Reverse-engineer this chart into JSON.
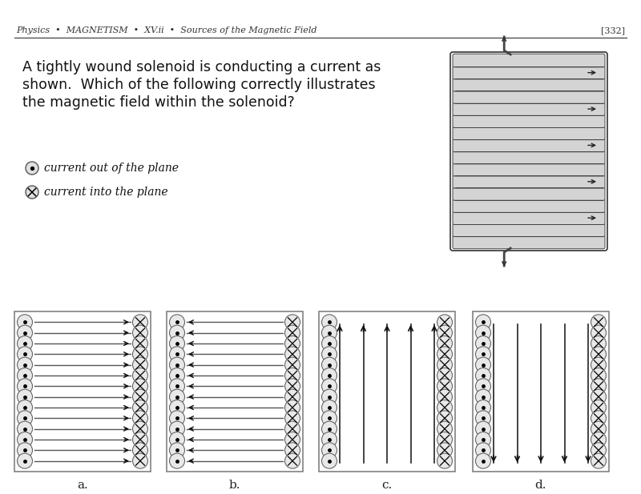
{
  "bg_color": "#ffffff",
  "header_text": "Physics  •  MAGNETISM  •  XV.ii  •  Sources of the Magnetic Field",
  "page_num": "[332]",
  "question_line1": "A tightly wound solenoid is conducting a current as",
  "question_line2": "shown.  Which of the following correctly illustrates",
  "question_line3": "the magnetic field within the solenoid?",
  "legend_dot": "current out of the plane",
  "legend_cross": "current into the plane",
  "labels": [
    "a.",
    "b.",
    "c.",
    "d."
  ],
  "ellipse_fill": "#e8e8e8",
  "ellipse_edge": "#666666",
  "panel_border": "#777777",
  "arrow_color": "#111111",
  "sol_fill": "#c0c0c0",
  "sol_edge": "#555555",
  "sol_tube_fill": "#d4d4d4",
  "sol_tube_edge": "#444444"
}
